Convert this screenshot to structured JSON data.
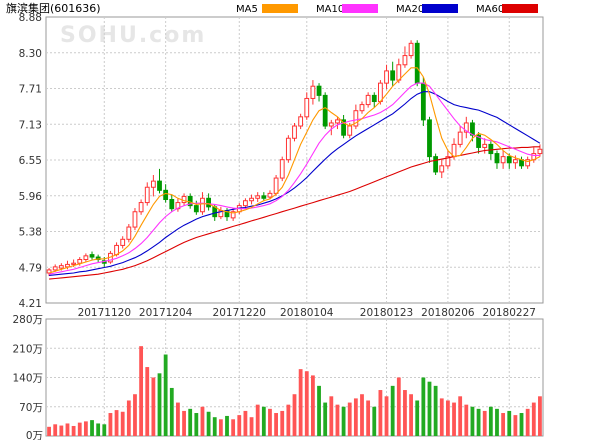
{
  "chart_data": [
    {
      "type": "candlestick",
      "title": "旗滨集团(601636)",
      "watermark": "SOHU.com",
      "legend": [
        {
          "name": "MA5",
          "color": "#ff9900"
        },
        {
          "name": "MA10",
          "color": "#ff33ff"
        },
        {
          "name": "MA20",
          "color": "#0000cc"
        },
        {
          "name": "MA60",
          "color": "#dd0000"
        }
      ],
      "up_color": "#ff3333",
      "down_color": "#009900",
      "y_ticks": [
        "8.88",
        "8.30",
        "7.71",
        "7.13",
        "6.55",
        "5.96",
        "5.38",
        "4.79",
        "4.21"
      ],
      "ylim": [
        4.21,
        8.88
      ],
      "x_ticks": [
        {
          "label": "20171120",
          "index": 9
        },
        {
          "label": "20171204",
          "index": 19
        },
        {
          "label": "20171220",
          "index": 31
        },
        {
          "label": "20180104",
          "index": 42
        },
        {
          "label": "20180123",
          "index": 55
        },
        {
          "label": "20180206",
          "index": 65
        },
        {
          "label": "20180227",
          "index": 75
        }
      ],
      "candles": [
        [
          4.7,
          4.75,
          4.65,
          4.78
        ],
        [
          4.75,
          4.8,
          4.72,
          4.84
        ],
        [
          4.78,
          4.82,
          4.74,
          4.86
        ],
        [
          4.8,
          4.84,
          4.76,
          4.9
        ],
        [
          4.84,
          4.86,
          4.8,
          4.92
        ],
        [
          4.86,
          4.92,
          4.82,
          4.96
        ],
        [
          4.92,
          4.98,
          4.88,
          5.02
        ],
        [
          5.0,
          4.96,
          4.92,
          5.05
        ],
        [
          4.96,
          4.92,
          4.88,
          5.0
        ],
        [
          4.9,
          4.86,
          4.8,
          4.96
        ],
        [
          4.88,
          5.02,
          4.85,
          5.06
        ],
        [
          5.0,
          5.15,
          4.97,
          5.2
        ],
        [
          5.15,
          5.25,
          5.1,
          5.3
        ],
        [
          5.25,
          5.45,
          5.2,
          5.5
        ],
        [
          5.45,
          5.7,
          5.4,
          5.76
        ],
        [
          5.7,
          5.85,
          5.65,
          5.9
        ],
        [
          5.85,
          6.1,
          5.8,
          6.18
        ],
        [
          6.1,
          6.2,
          5.95,
          6.3
        ],
        [
          6.2,
          6.05,
          6.0,
          6.4
        ],
        [
          6.05,
          5.9,
          5.85,
          6.15
        ],
        [
          5.9,
          5.75,
          5.7,
          5.98
        ],
        [
          5.75,
          5.85,
          5.7,
          5.92
        ],
        [
          5.85,
          5.95,
          5.8,
          6.0
        ],
        [
          5.95,
          5.8,
          5.75,
          6.0
        ],
        [
          5.8,
          5.7,
          5.65,
          5.88
        ],
        [
          5.7,
          5.92,
          5.65,
          6.02
        ],
        [
          5.92,
          5.78,
          5.72,
          6.0
        ],
        [
          5.78,
          5.62,
          5.55,
          5.82
        ],
        [
          5.62,
          5.72,
          5.58,
          5.78
        ],
        [
          5.72,
          5.62,
          5.55,
          5.76
        ],
        [
          5.6,
          5.7,
          5.55,
          5.76
        ],
        [
          5.7,
          5.8,
          5.66,
          5.84
        ],
        [
          5.8,
          5.88,
          5.75,
          5.92
        ],
        [
          5.88,
          5.92,
          5.82,
          5.98
        ],
        [
          5.92,
          5.96,
          5.86,
          6.02
        ],
        [
          5.96,
          5.92,
          5.88,
          6.02
        ],
        [
          5.94,
          6.0,
          5.9,
          6.05
        ],
        [
          6.0,
          6.25,
          5.96,
          6.3
        ],
        [
          6.25,
          6.55,
          6.2,
          6.6
        ],
        [
          6.55,
          6.9,
          6.5,
          6.95
        ],
        [
          6.9,
          7.1,
          6.85,
          7.15
        ],
        [
          7.1,
          7.25,
          7.05,
          7.3
        ],
        [
          7.25,
          7.55,
          7.2,
          7.65
        ],
        [
          7.55,
          7.75,
          7.45,
          7.85
        ],
        [
          7.75,
          7.6,
          7.5,
          7.8
        ],
        [
          7.6,
          7.1,
          7.05,
          7.65
        ],
        [
          7.1,
          7.15,
          6.95,
          7.2
        ],
        [
          7.15,
          7.2,
          7.05,
          7.25
        ],
        [
          7.2,
          6.95,
          6.9,
          7.28
        ],
        [
          6.95,
          7.1,
          6.9,
          7.15
        ],
        [
          7.1,
          7.35,
          7.05,
          7.45
        ],
        [
          7.35,
          7.45,
          7.3,
          7.5
        ],
        [
          7.45,
          7.6,
          7.4,
          7.65
        ],
        [
          7.6,
          7.5,
          7.4,
          7.65
        ],
        [
          7.5,
          7.8,
          7.45,
          7.85
        ],
        [
          7.8,
          8.0,
          7.7,
          8.1
        ],
        [
          8.0,
          7.85,
          7.75,
          8.15
        ],
        [
          7.85,
          8.1,
          7.8,
          8.2
        ],
        [
          8.1,
          8.25,
          8.05,
          8.4
        ],
        [
          8.25,
          8.45,
          8.2,
          8.5
        ],
        [
          8.45,
          7.8,
          7.75,
          8.5
        ],
        [
          7.8,
          7.2,
          7.1,
          7.9
        ],
        [
          7.2,
          6.6,
          6.5,
          7.25
        ],
        [
          6.6,
          6.35,
          6.3,
          6.65
        ],
        [
          6.35,
          6.45,
          6.25,
          6.55
        ],
        [
          6.45,
          6.6,
          6.4,
          6.7
        ],
        [
          6.6,
          6.8,
          6.55,
          6.9
        ],
        [
          6.8,
          7.0,
          6.75,
          7.1
        ],
        [
          7.0,
          7.15,
          6.9,
          7.25
        ],
        [
          7.15,
          6.95,
          6.85,
          7.2
        ],
        [
          6.95,
          6.75,
          6.65,
          7.0
        ],
        [
          6.75,
          6.8,
          6.65,
          6.9
        ],
        [
          6.8,
          6.65,
          6.55,
          6.85
        ],
        [
          6.65,
          6.5,
          6.4,
          6.7
        ],
        [
          6.5,
          6.6,
          6.4,
          6.7
        ],
        [
          6.6,
          6.5,
          6.4,
          6.65
        ],
        [
          6.5,
          6.55,
          6.4,
          6.62
        ],
        [
          6.55,
          6.45,
          6.4,
          6.6
        ],
        [
          6.45,
          6.55,
          6.4,
          6.6
        ],
        [
          6.55,
          6.65,
          6.5,
          6.75
        ],
        [
          6.65,
          6.72,
          6.6,
          6.8
        ]
      ],
      "ma5": [
        4.7,
        4.73,
        4.76,
        4.79,
        4.82,
        4.85,
        4.88,
        4.91,
        4.93,
        4.93,
        4.96,
        5.0,
        5.06,
        5.15,
        5.3,
        5.48,
        5.65,
        5.82,
        5.95,
        6.0,
        5.98,
        5.92,
        5.88,
        5.86,
        5.82,
        5.83,
        5.83,
        5.78,
        5.72,
        5.7,
        5.68,
        5.7,
        5.73,
        5.77,
        5.83,
        5.88,
        5.91,
        5.99,
        6.1,
        6.3,
        6.55,
        6.8,
        7.0,
        7.2,
        7.35,
        7.4,
        7.32,
        7.25,
        7.15,
        7.1,
        7.15,
        7.22,
        7.32,
        7.4,
        7.5,
        7.62,
        7.75,
        7.85,
        7.95,
        8.05,
        8.05,
        7.9,
        7.62,
        7.25,
        6.9,
        6.7,
        6.6,
        6.62,
        6.75,
        6.9,
        6.98,
        6.95,
        6.88,
        6.8,
        6.7,
        6.62,
        6.58,
        6.55,
        6.52,
        6.55,
        6.6
      ],
      "ma10": [
        4.68,
        4.7,
        4.72,
        4.74,
        4.76,
        4.79,
        4.82,
        4.85,
        4.87,
        4.89,
        4.91,
        4.94,
        4.98,
        5.03,
        5.1,
        5.18,
        5.28,
        5.4,
        5.52,
        5.62,
        5.7,
        5.76,
        5.8,
        5.83,
        5.84,
        5.84,
        5.83,
        5.82,
        5.8,
        5.78,
        5.76,
        5.75,
        5.75,
        5.76,
        5.78,
        5.8,
        5.83,
        5.88,
        5.95,
        6.05,
        6.18,
        6.32,
        6.48,
        6.65,
        6.82,
        6.95,
        7.05,
        7.12,
        7.15,
        7.18,
        7.2,
        7.22,
        7.25,
        7.28,
        7.32,
        7.38,
        7.45,
        7.55,
        7.65,
        7.75,
        7.8,
        7.8,
        7.75,
        7.62,
        7.48,
        7.35,
        7.22,
        7.1,
        7.02,
        6.96,
        6.92,
        6.88,
        6.86,
        6.84,
        6.8,
        6.76,
        6.72,
        6.68,
        6.64,
        6.62,
        6.62
      ],
      "ma20": [
        4.66,
        4.67,
        4.68,
        4.69,
        4.7,
        4.72,
        4.73,
        4.75,
        4.77,
        4.79,
        4.81,
        4.84,
        4.87,
        4.91,
        4.95,
        5.0,
        5.06,
        5.13,
        5.2,
        5.28,
        5.35,
        5.42,
        5.48,
        5.53,
        5.58,
        5.62,
        5.65,
        5.68,
        5.7,
        5.72,
        5.74,
        5.76,
        5.77,
        5.79,
        5.81,
        5.84,
        5.87,
        5.91,
        5.96,
        6.02,
        6.09,
        6.17,
        6.26,
        6.36,
        6.46,
        6.56,
        6.65,
        6.73,
        6.8,
        6.87,
        6.94,
        7.0,
        7.06,
        7.12,
        7.18,
        7.24,
        7.3,
        7.38,
        7.46,
        7.55,
        7.62,
        7.66,
        7.66,
        7.62,
        7.56,
        7.5,
        7.45,
        7.42,
        7.4,
        7.38,
        7.36,
        7.32,
        7.28,
        7.24,
        7.18,
        7.12,
        7.06,
        7.0,
        6.94,
        6.88,
        6.82
      ],
      "ma60": [
        4.6,
        4.61,
        4.62,
        4.63,
        4.64,
        4.65,
        4.66,
        4.67,
        4.68,
        4.7,
        4.72,
        4.74,
        4.76,
        4.79,
        4.82,
        4.86,
        4.9,
        4.95,
        5.0,
        5.05,
        5.1,
        5.15,
        5.2,
        5.24,
        5.28,
        5.31,
        5.34,
        5.37,
        5.4,
        5.43,
        5.46,
        5.49,
        5.52,
        5.55,
        5.58,
        5.61,
        5.64,
        5.67,
        5.7,
        5.73,
        5.76,
        5.79,
        5.82,
        5.85,
        5.88,
        5.91,
        5.94,
        5.97,
        6.0,
        6.03,
        6.07,
        6.11,
        6.15,
        6.19,
        6.23,
        6.27,
        6.31,
        6.35,
        6.39,
        6.43,
        6.46,
        6.49,
        6.52,
        6.54,
        6.56,
        6.58,
        6.6,
        6.62,
        6.64,
        6.66,
        6.68,
        6.7,
        6.71,
        6.72,
        6.73,
        6.74,
        6.74,
        6.75,
        6.75,
        6.76,
        6.76
      ]
    },
    {
      "type": "bar",
      "title": "",
      "y_ticks": [
        "280万",
        "210万",
        "140万",
        "70万",
        "0万"
      ],
      "ylim": [
        0,
        280
      ],
      "volumes": [
        22,
        28,
        25,
        30,
        24,
        32,
        35,
        38,
        30,
        28,
        55,
        62,
        58,
        85,
        100,
        215,
        165,
        140,
        150,
        195,
        115,
        80,
        60,
        65,
        55,
        70,
        58,
        45,
        40,
        48,
        40,
        50,
        60,
        45,
        75,
        70,
        65,
        55,
        60,
        75,
        100,
        160,
        155,
        145,
        120,
        80,
        95,
        75,
        70,
        80,
        90,
        100,
        85,
        70,
        110,
        95,
        120,
        140,
        110,
        100,
        85,
        140,
        130,
        120,
        90,
        85,
        80,
        95,
        75,
        70,
        65,
        60,
        70,
        65,
        55,
        60,
        50,
        55,
        65,
        80,
        95
      ]
    }
  ]
}
